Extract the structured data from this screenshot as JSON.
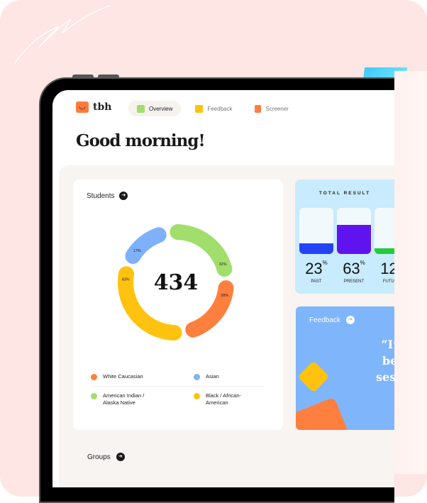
{
  "header": {
    "logo": "tbh",
    "logo_icon": "smiley-icon",
    "title": "Good morning!",
    "nav": [
      {
        "label": "Overview",
        "icon": "grid-icon",
        "active": true
      },
      {
        "label": "Feedback",
        "icon": "chat-icon"
      },
      {
        "label": "Screener",
        "icon": "document-icon"
      }
    ]
  },
  "students": {
    "title": "Students",
    "total": "434",
    "legend": [
      {
        "label": "White Caucasian",
        "color": "#ff7f3e"
      },
      {
        "label": "Asian",
        "color": "#7fb1fb"
      },
      {
        "label": "American Indian / Alaska Native",
        "color": "#a1de6b"
      },
      {
        "label": "Black / African-American",
        "color": "#ffc20e"
      }
    ]
  },
  "chart_data": {
    "type": "pie",
    "center_label": "434",
    "slices": [
      {
        "label": "American Indian / Alaska Native",
        "value": 32,
        "text": "32%",
        "color": "#a1de6b"
      },
      {
        "label": "White Caucasian",
        "value": 28,
        "text": "28%",
        "color": "#ff7f3e"
      },
      {
        "label": "Black / African-American",
        "value": 43,
        "text": "43%",
        "color": "#ffc20e"
      },
      {
        "label": "Asian",
        "value": 17,
        "text": "17%",
        "color": "#7fb1fb"
      }
    ]
  },
  "total_result": {
    "title": "TOTAL RESULT",
    "items": [
      {
        "value": "23",
        "unit": "%",
        "label": "PAST",
        "fill": 0.23,
        "color": "#2344f5"
      },
      {
        "value": "63",
        "unit": "%",
        "label": "PRESENT",
        "fill": 0.63,
        "color": "#5f14ef"
      },
      {
        "value": "12",
        "unit": "%",
        "label": "FUTURE",
        "fill": 0.12,
        "color": "#22cc3c"
      }
    ]
  },
  "feedback": {
    "title": "Feedback",
    "quote": "“I'm … bett… sessio…",
    "quote_lines": [
      "“I’m",
      "bett",
      "sessio"
    ]
  },
  "groups": {
    "title": "Groups"
  }
}
